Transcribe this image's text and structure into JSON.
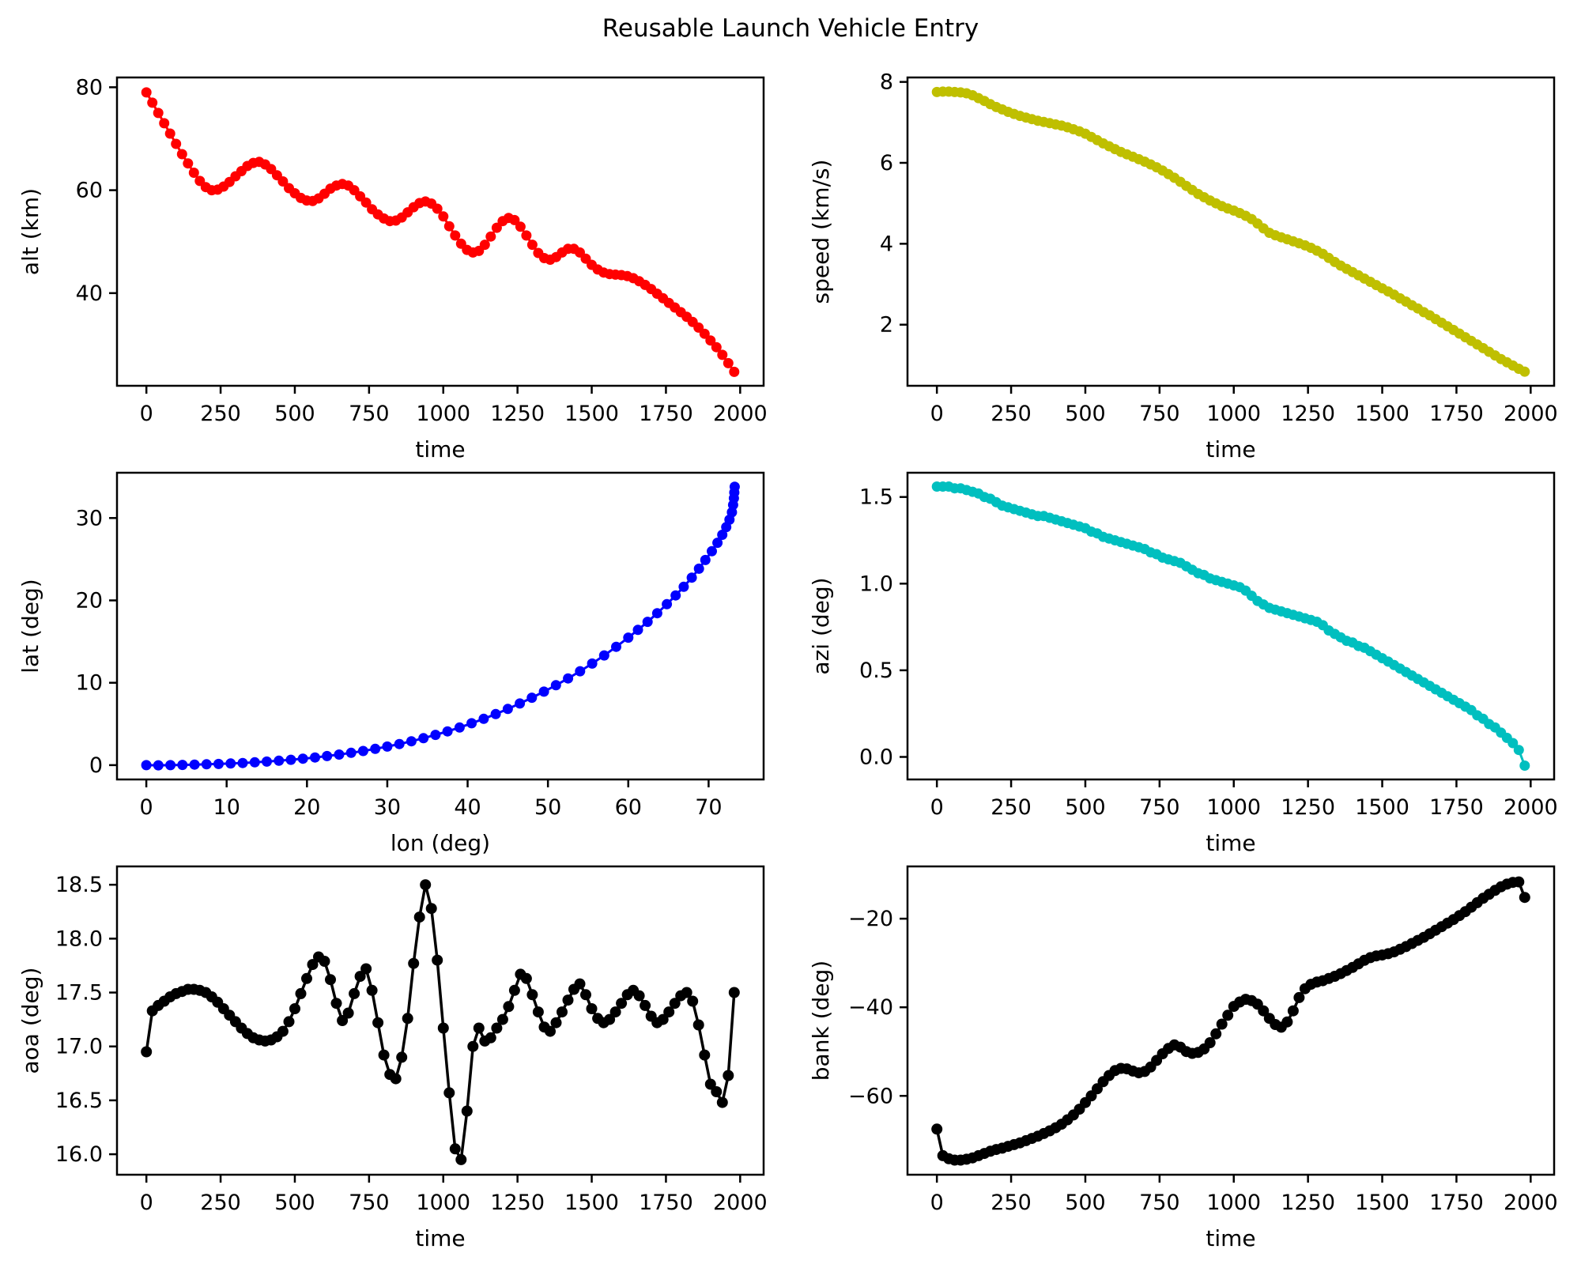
{
  "title": "Reusable Launch Vehicle Entry",
  "colors": {
    "alt": "#ff0000",
    "speed": "#bfbf00",
    "latlon": "#0000ff",
    "azi": "#00bfbf",
    "aoa": "#000000",
    "bank": "#000000",
    "axes": "#000000",
    "background": "#ffffff"
  },
  "time_axis": [
    0,
    20,
    40,
    60,
    80,
    100,
    120,
    140,
    160,
    180,
    200,
    220,
    240,
    260,
    280,
    300,
    320,
    340,
    360,
    380,
    400,
    420,
    440,
    460,
    480,
    500,
    520,
    540,
    560,
    580,
    600,
    620,
    640,
    660,
    680,
    700,
    720,
    740,
    760,
    780,
    800,
    820,
    840,
    860,
    880,
    900,
    920,
    940,
    960,
    980,
    1000,
    1020,
    1040,
    1060,
    1080,
    1100,
    1120,
    1140,
    1160,
    1180,
    1200,
    1220,
    1240,
    1260,
    1280,
    1300,
    1320,
    1340,
    1360,
    1380,
    1400,
    1420,
    1440,
    1460,
    1480,
    1500,
    1520,
    1540,
    1560,
    1580,
    1600,
    1620,
    1640,
    1660,
    1680,
    1700,
    1720,
    1740,
    1760,
    1780,
    1800,
    1820,
    1840,
    1860,
    1880,
    1900,
    1920,
    1940,
    1960,
    1980
  ],
  "chart_data": [
    {
      "id": "alt",
      "type": "line",
      "marker": "o",
      "marker_size": 6.5,
      "line_width": 3,
      "xlabel": "time",
      "ylabel": "alt (km)",
      "color": "#ff0000",
      "xlim": [
        -99,
        2079
      ],
      "ylim": [
        22.0,
        81.9
      ],
      "grid": false,
      "xticks": [
        0,
        250,
        500,
        750,
        1000,
        1250,
        1500,
        1750,
        2000
      ],
      "xtick_labels": [
        "0",
        "250",
        "500",
        "750",
        "1000",
        "1250",
        "1500",
        "1750",
        "2000"
      ],
      "yticks": [
        40,
        60,
        80
      ],
      "ytick_labels": [
        "40",
        "60",
        "80"
      ],
      "x": "@time",
      "y": [
        79.0,
        77.0,
        75.0,
        73.0,
        71.0,
        69.0,
        67.0,
        65.2,
        63.4,
        61.8,
        60.6,
        60.0,
        60.1,
        60.7,
        61.6,
        62.7,
        63.7,
        64.7,
        65.3,
        65.5,
        65.0,
        64.1,
        62.9,
        61.7,
        60.4,
        59.4,
        58.5,
        58.0,
        57.9,
        58.4,
        59.3,
        60.3,
        60.9,
        61.2,
        60.9,
        60.0,
        58.8,
        57.6,
        56.3,
        55.3,
        54.5,
        54.0,
        54.1,
        54.7,
        55.7,
        56.7,
        57.5,
        57.8,
        57.4,
        56.4,
        54.9,
        53.0,
        51.2,
        49.6,
        48.4,
        47.9,
        48.2,
        49.4,
        51.0,
        52.7,
        54.0,
        54.6,
        54.2,
        52.9,
        51.2,
        49.4,
        47.8,
        46.8,
        46.5,
        47.0,
        47.9,
        48.6,
        48.6,
        47.9,
        46.7,
        45.5,
        44.6,
        44.0,
        43.7,
        43.6,
        43.5,
        43.3,
        42.9,
        42.3,
        41.6,
        40.8,
        39.9,
        39.0,
        38.1,
        37.2,
        36.3,
        35.4,
        34.4,
        33.3,
        32.1,
        30.8,
        29.5,
        28.0,
        26.4,
        24.7
      ]
    },
    {
      "id": "speed",
      "type": "line",
      "marker": "o",
      "marker_size": 6.5,
      "line_width": 3,
      "xlabel": "time",
      "ylabel": "speed (km/s)",
      "color": "#bfbf00",
      "xlim": [
        -99,
        2079
      ],
      "ylim": [
        0.49,
        8.11
      ],
      "grid": false,
      "xticks": [
        0,
        250,
        500,
        750,
        1000,
        1250,
        1500,
        1750,
        2000
      ],
      "xtick_labels": [
        "0",
        "250",
        "500",
        "750",
        "1000",
        "1250",
        "1500",
        "1750",
        "2000"
      ],
      "yticks": [
        2,
        4,
        6,
        8
      ],
      "ytick_labels": [
        "2",
        "4",
        "6",
        "8"
      ],
      "x": "@time",
      "y": [
        7.75,
        7.76,
        7.76,
        7.75,
        7.74,
        7.72,
        7.67,
        7.6,
        7.53,
        7.45,
        7.38,
        7.32,
        7.26,
        7.21,
        7.16,
        7.12,
        7.08,
        7.04,
        7.01,
        6.98,
        6.95,
        6.92,
        6.88,
        6.83,
        6.78,
        6.72,
        6.64,
        6.56,
        6.48,
        6.41,
        6.34,
        6.27,
        6.21,
        6.15,
        6.09,
        6.03,
        5.96,
        5.89,
        5.81,
        5.72,
        5.63,
        5.53,
        5.43,
        5.33,
        5.23,
        5.15,
        5.07,
        5.0,
        4.93,
        4.87,
        4.82,
        4.76,
        4.69,
        4.61,
        4.5,
        4.38,
        4.27,
        4.21,
        4.16,
        4.11,
        4.06,
        4.01,
        3.96,
        3.9,
        3.83,
        3.75,
        3.65,
        3.55,
        3.46,
        3.38,
        3.3,
        3.22,
        3.14,
        3.06,
        2.98,
        2.9,
        2.82,
        2.74,
        2.65,
        2.57,
        2.48,
        2.4,
        2.31,
        2.23,
        2.14,
        2.05,
        1.96,
        1.87,
        1.78,
        1.69,
        1.6,
        1.51,
        1.42,
        1.33,
        1.24,
        1.15,
        1.07,
        0.99,
        0.91,
        0.84
      ]
    },
    {
      "id": "latlon",
      "type": "line",
      "marker": "o",
      "marker_size": 6.5,
      "line_width": 3,
      "xlabel": "lon (deg)",
      "ylabel": "lat (deg)",
      "color": "#0000ff",
      "xlim": [
        -3.65,
        76.85
      ],
      "ylim": [
        -1.74,
        35.5
      ],
      "grid": false,
      "xticks": [
        0,
        10,
        20,
        30,
        40,
        50,
        60,
        70
      ],
      "xtick_labels": [
        "0",
        "10",
        "20",
        "30",
        "40",
        "50",
        "60",
        "70"
      ],
      "yticks": [
        0,
        10,
        20,
        30
      ],
      "ytick_labels": [
        "0",
        "10",
        "20",
        "30"
      ],
      "x": [
        0,
        1.5,
        3,
        4.5,
        6,
        7.5,
        9,
        10.5,
        12,
        13.5,
        15,
        16.5,
        18,
        19.5,
        21,
        22.5,
        24,
        25.5,
        27,
        28.5,
        30,
        31.5,
        33,
        34.5,
        36,
        37.5,
        39,
        40.5,
        42,
        43.5,
        45,
        46.5,
        48,
        49.5,
        51,
        52.5,
        54,
        55.5,
        57,
        58.5,
        60,
        61.2,
        62.4,
        63.6,
        64.8,
        65.9,
        66.9,
        67.9,
        68.8,
        69.6,
        70.4,
        71.1,
        71.7,
        72.2,
        72.6,
        72.9,
        73.05,
        73.15,
        73.2,
        73.25
      ],
      "y": [
        0,
        -0.02,
        0,
        0.03,
        0.06,
        0.1,
        0.14,
        0.2,
        0.26,
        0.34,
        0.43,
        0.53,
        0.65,
        0.78,
        0.93,
        1.1,
        1.28,
        1.49,
        1.72,
        1.97,
        2.25,
        2.56,
        2.9,
        3.27,
        3.67,
        4.1,
        4.57,
        5.08,
        5.62,
        6.2,
        6.82,
        7.48,
        8.18,
        8.92,
        9.7,
        10.53,
        11.4,
        12.33,
        13.32,
        14.37,
        15.48,
        16.42,
        17.4,
        18.44,
        19.54,
        20.6,
        21.65,
        22.76,
        23.85,
        24.9,
        25.97,
        27.0,
        27.97,
        28.9,
        29.8,
        30.7,
        31.6,
        32.4,
        33.1,
        33.8
      ]
    },
    {
      "id": "azi",
      "type": "line",
      "marker": "o",
      "marker_size": 6.5,
      "line_width": 3,
      "xlabel": "time",
      "ylabel": "azi (deg)",
      "color": "#00bfbf",
      "xlim": [
        -99,
        2079
      ],
      "ylim": [
        -0.13,
        1.64
      ],
      "grid": false,
      "xticks": [
        0,
        250,
        500,
        750,
        1000,
        1250,
        1500,
        1750,
        2000
      ],
      "xtick_labels": [
        "0",
        "250",
        "500",
        "750",
        "1000",
        "1250",
        "1500",
        "1750",
        "2000"
      ],
      "yticks": [
        0.0,
        0.5,
        1.0,
        1.5
      ],
      "ytick_labels": [
        "0.0",
        "0.5",
        "1.0",
        "1.5"
      ],
      "x": "@time",
      "y": [
        1.56,
        1.56,
        1.56,
        1.55,
        1.55,
        1.54,
        1.53,
        1.52,
        1.5,
        1.49,
        1.47,
        1.45,
        1.44,
        1.43,
        1.42,
        1.41,
        1.4,
        1.39,
        1.39,
        1.38,
        1.37,
        1.36,
        1.35,
        1.34,
        1.33,
        1.32,
        1.3,
        1.29,
        1.27,
        1.26,
        1.25,
        1.24,
        1.23,
        1.22,
        1.21,
        1.2,
        1.18,
        1.17,
        1.15,
        1.14,
        1.13,
        1.12,
        1.1,
        1.08,
        1.06,
        1.05,
        1.03,
        1.02,
        1.01,
        1.0,
        0.99,
        0.98,
        0.96,
        0.93,
        0.9,
        0.88,
        0.86,
        0.85,
        0.84,
        0.83,
        0.82,
        0.81,
        0.8,
        0.79,
        0.78,
        0.76,
        0.73,
        0.71,
        0.69,
        0.67,
        0.66,
        0.64,
        0.63,
        0.61,
        0.59,
        0.57,
        0.55,
        0.53,
        0.51,
        0.49,
        0.47,
        0.45,
        0.43,
        0.41,
        0.39,
        0.37,
        0.35,
        0.33,
        0.31,
        0.29,
        0.27,
        0.24,
        0.22,
        0.19,
        0.17,
        0.14,
        0.11,
        0.08,
        0.04,
        -0.05
      ]
    },
    {
      "id": "aoa",
      "type": "line",
      "marker": "o",
      "marker_size": 7,
      "line_width": 3.5,
      "xlabel": "time",
      "ylabel": "aoa (deg)",
      "color": "#000000",
      "xlim": [
        -99,
        2079
      ],
      "ylim": [
        15.81,
        18.67
      ],
      "grid": false,
      "xticks": [
        0,
        250,
        500,
        750,
        1000,
        1250,
        1500,
        1750,
        2000
      ],
      "xtick_labels": [
        "0",
        "250",
        "500",
        "750",
        "1000",
        "1250",
        "1500",
        "1750",
        "2000"
      ],
      "yticks": [
        16.0,
        16.5,
        17.0,
        17.5,
        18.0,
        18.5
      ],
      "ytick_labels": [
        "16.0",
        "16.5",
        "17.0",
        "17.5",
        "18.0",
        "18.5"
      ],
      "x": "@time",
      "y": [
        16.95,
        17.33,
        17.38,
        17.42,
        17.46,
        17.49,
        17.51,
        17.53,
        17.53,
        17.52,
        17.5,
        17.46,
        17.41,
        17.35,
        17.29,
        17.23,
        17.17,
        17.12,
        17.08,
        17.06,
        17.05,
        17.06,
        17.09,
        17.14,
        17.23,
        17.35,
        17.49,
        17.63,
        17.76,
        17.83,
        17.79,
        17.62,
        17.4,
        17.24,
        17.31,
        17.49,
        17.65,
        17.72,
        17.52,
        17.22,
        16.92,
        16.74,
        16.7,
        16.9,
        17.26,
        17.77,
        18.2,
        18.5,
        18.28,
        17.8,
        17.17,
        16.57,
        16.05,
        15.95,
        16.4,
        17.0,
        17.17,
        17.05,
        17.08,
        17.17,
        17.25,
        17.37,
        17.52,
        17.67,
        17.63,
        17.48,
        17.32,
        17.18,
        17.14,
        17.22,
        17.32,
        17.43,
        17.53,
        17.58,
        17.48,
        17.35,
        17.26,
        17.22,
        17.25,
        17.32,
        17.4,
        17.48,
        17.52,
        17.47,
        17.38,
        17.28,
        17.22,
        17.25,
        17.32,
        17.4,
        17.47,
        17.5,
        17.42,
        17.2,
        16.92,
        16.65,
        16.58,
        16.48,
        16.73,
        17.5
      ]
    },
    {
      "id": "bank",
      "type": "line",
      "marker": "o",
      "marker_size": 7,
      "line_width": 3.5,
      "xlabel": "time",
      "ylabel": "bank (deg)",
      "color": "#000000",
      "xlim": [
        -99,
        2079
      ],
      "ylim": [
        -77.8,
        -8.2
      ],
      "grid": false,
      "xticks": [
        0,
        250,
        500,
        750,
        1000,
        1250,
        1500,
        1750,
        2000
      ],
      "xtick_labels": [
        "0",
        "250",
        "500",
        "750",
        "1000",
        "1250",
        "1500",
        "1750",
        "2000"
      ],
      "yticks": [
        -60,
        -40,
        -20
      ],
      "ytick_labels": [
        "−60",
        "−40",
        "−20"
      ],
      "x": "@time",
      "y": [
        -67.5,
        -73.5,
        -74.2,
        -74.5,
        -74.5,
        -74.3,
        -74.0,
        -73.5,
        -73.0,
        -72.5,
        -72.1,
        -71.8,
        -71.4,
        -71.0,
        -70.6,
        -70.1,
        -69.6,
        -69.1,
        -68.5,
        -67.9,
        -67.2,
        -66.4,
        -65.4,
        -64.3,
        -63.0,
        -61.5,
        -60.0,
        -58.4,
        -56.8,
        -55.4,
        -54.3,
        -53.8,
        -53.9,
        -54.4,
        -54.8,
        -54.5,
        -53.5,
        -52.0,
        -50.5,
        -49.3,
        -48.5,
        -49.0,
        -50.0,
        -50.4,
        -50.2,
        -49.4,
        -48.0,
        -46.0,
        -43.8,
        -41.8,
        -39.8,
        -38.8,
        -38.2,
        -38.5,
        -39.3,
        -40.8,
        -42.5,
        -43.9,
        -44.5,
        -43.3,
        -40.8,
        -37.8,
        -35.8,
        -34.8,
        -34.3,
        -34.0,
        -33.5,
        -33.0,
        -32.4,
        -31.7,
        -31.0,
        -30.2,
        -29.4,
        -28.8,
        -28.4,
        -28.2,
        -27.9,
        -27.5,
        -26.9,
        -26.3,
        -25.6,
        -24.9,
        -24.2,
        -23.4,
        -22.6,
        -21.8,
        -21.0,
        -20.2,
        -19.3,
        -18.4,
        -17.4,
        -16.4,
        -15.4,
        -14.5,
        -13.6,
        -12.8,
        -12.2,
        -11.8,
        -11.7,
        -15.2
      ]
    }
  ]
}
